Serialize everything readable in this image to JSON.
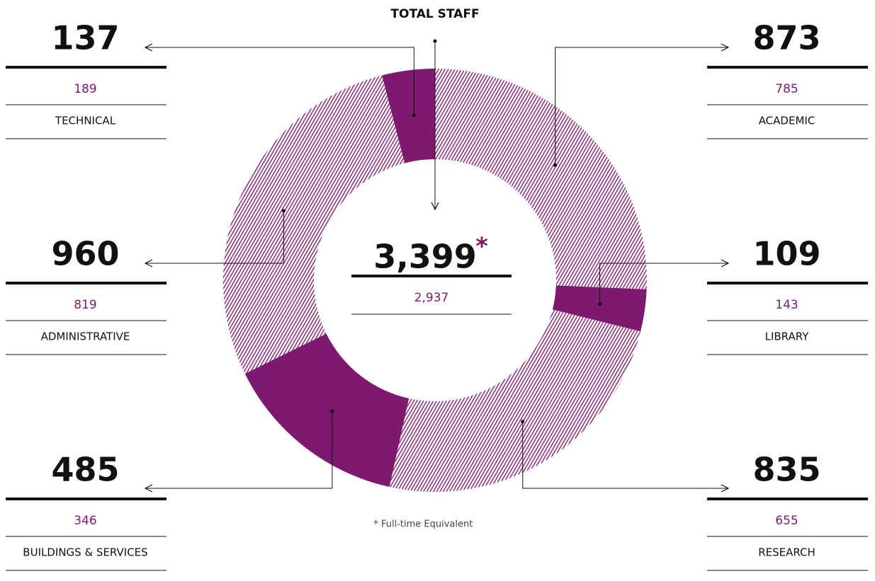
{
  "chart_data": {
    "type": "donut",
    "title": "TOTAL STAFF",
    "categories": [
      "ACADEMIC",
      "LIBRARY",
      "RESEARCH",
      "BUILDINGS & SERVICES",
      "ADMINISTRATIVE",
      "TECHNICAL"
    ],
    "values": [
      873,
      109,
      835,
      485,
      960,
      137
    ],
    "fte_values": [
      785,
      143,
      655,
      346,
      819,
      189
    ],
    "fills": [
      "hatch",
      "solid",
      "hatch",
      "solid",
      "hatch",
      "solid"
    ],
    "color": "#7d1a6f",
    "total_label": "3,399",
    "total_marker": "*",
    "total_fte_label": "2,937",
    "footnote": "Full-time Equivalent"
  }
}
